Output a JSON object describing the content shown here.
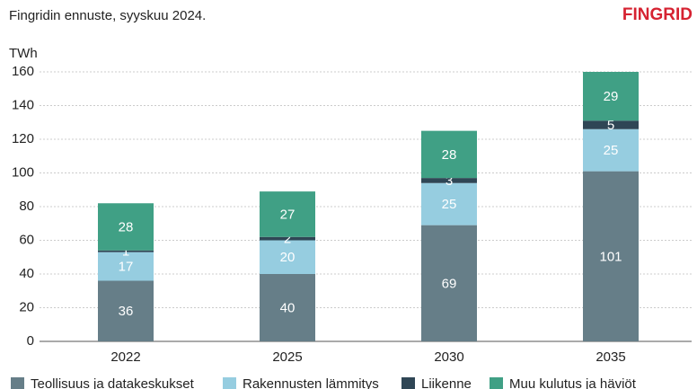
{
  "brand": "FINGRID",
  "chart_data": {
    "type": "stacked_bar",
    "subtitle": "Fingridin ennuste, syyskuu 2024.",
    "y_label": "TWh",
    "categories": [
      "2022",
      "2025",
      "2030",
      "2035"
    ],
    "series": [
      {
        "name": "Teollisuus ja datakeskukset",
        "color": "#667e88",
        "values": [
          36,
          40,
          69,
          101
        ]
      },
      {
        "name": "Rakennusten lämmitys",
        "color": "#96cde0",
        "values": [
          17,
          20,
          25,
          25
        ]
      },
      {
        "name": "Liikenne",
        "color": "#2f4655",
        "values": [
          1,
          2,
          3,
          5
        ]
      },
      {
        "name": "Muu kulutus ja häviöt",
        "color": "#40a085",
        "values": [
          28,
          27,
          28,
          29
        ]
      }
    ],
    "ylim": [
      0,
      160
    ],
    "yticks": [
      0,
      20,
      40,
      60,
      80,
      100,
      120,
      140,
      160
    ],
    "grid": true
  }
}
